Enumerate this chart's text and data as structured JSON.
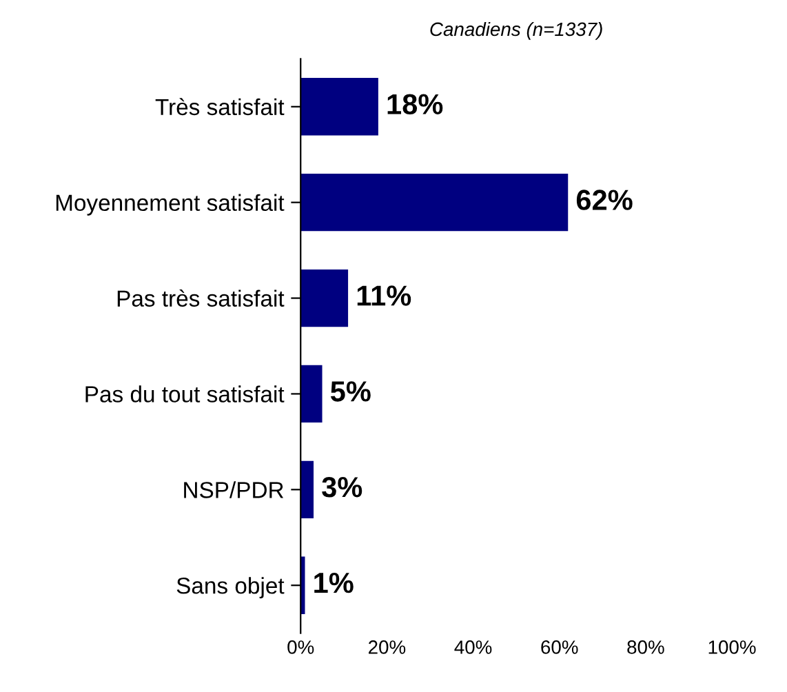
{
  "chart_data": {
    "type": "bar",
    "orientation": "horizontal",
    "title": "Canadiens (n=1337)",
    "categories": [
      "Très satisfait",
      "Moyennement satisfait",
      "Pas très satisfait",
      "Pas du tout satisfait",
      "NSP/PDR",
      "Sans objet"
    ],
    "values": [
      18,
      62,
      11,
      5,
      3,
      1
    ],
    "value_labels": [
      "18%",
      "62%",
      "11%",
      "5%",
      "3%",
      "1%"
    ],
    "color": "#000080",
    "xlim": [
      0,
      100
    ],
    "xticks": [
      {
        "value": 0,
        "label": "0%"
      },
      {
        "value": 20,
        "label": "20%"
      },
      {
        "value": 40,
        "label": "40%"
      },
      {
        "value": 60,
        "label": "60%"
      },
      {
        "value": 80,
        "label": "80%"
      },
      {
        "value": 100,
        "label": "100%"
      }
    ],
    "grid": false,
    "legend": false
  }
}
